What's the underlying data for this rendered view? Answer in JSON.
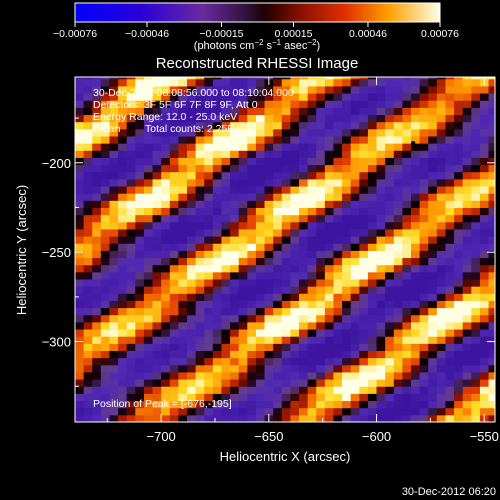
{
  "chart_data": {
    "type": "heatmap",
    "title": "Reconstructed RHESSI Image",
    "xlabel": "Heliocentric X (arcsec)",
    "ylabel": "Heliocentric Y (arcsec)",
    "xlim": [
      -740,
      -545
    ],
    "ylim": [
      -345,
      -152
    ],
    "x_ticks": [
      -700,
      -650,
      -600,
      -550
    ],
    "y_ticks": [
      -200,
      -250,
      -300
    ],
    "x_tick_labels": [
      "−700",
      "−650",
      "−600",
      "−550"
    ],
    "y_tick_labels": [
      "−200",
      "−250",
      "−300"
    ],
    "colorbar": {
      "range": [
        -0.00076,
        0.00076
      ],
      "ticks": [
        -0.00076,
        -0.00046,
        -0.00015,
        0.00015,
        0.00046,
        0.00076
      ],
      "tick_labels": [
        "−0.00076",
        "−0.00046",
        "−0.00015",
        "0.00015",
        "0.00046",
        "0.00076"
      ],
      "units_prefix": "(photons cm",
      "units_exp1": "−2",
      "units_mid1": " s",
      "units_exp2": "−1",
      "units_mid2": " asec",
      "units_exp3": "−2",
      "units_suffix": ")"
    },
    "annotations": {
      "time_range": "30-Dec-2012 08:08:56.000 to 08:10:04.000",
      "detectors": "Detectors: 3F 5F 6F 7F 8F 9F, Att 0",
      "energy": "Energy Range: 12.0 - 25.0 keV",
      "method": "Clean",
      "total_counts": "Total counts: 2.25E+03",
      "peak": "Position of Peak = [-676,-195]"
    },
    "peak_position": [
      -676,
      -195
    ],
    "band_stripes": {
      "orientation_deg": 40,
      "spacing_arcsec": 47,
      "description": "diagonal bright stripes alternating with dark troughs"
    }
  },
  "footer": {
    "timestamp": "30-Dec-2012 06:20"
  }
}
